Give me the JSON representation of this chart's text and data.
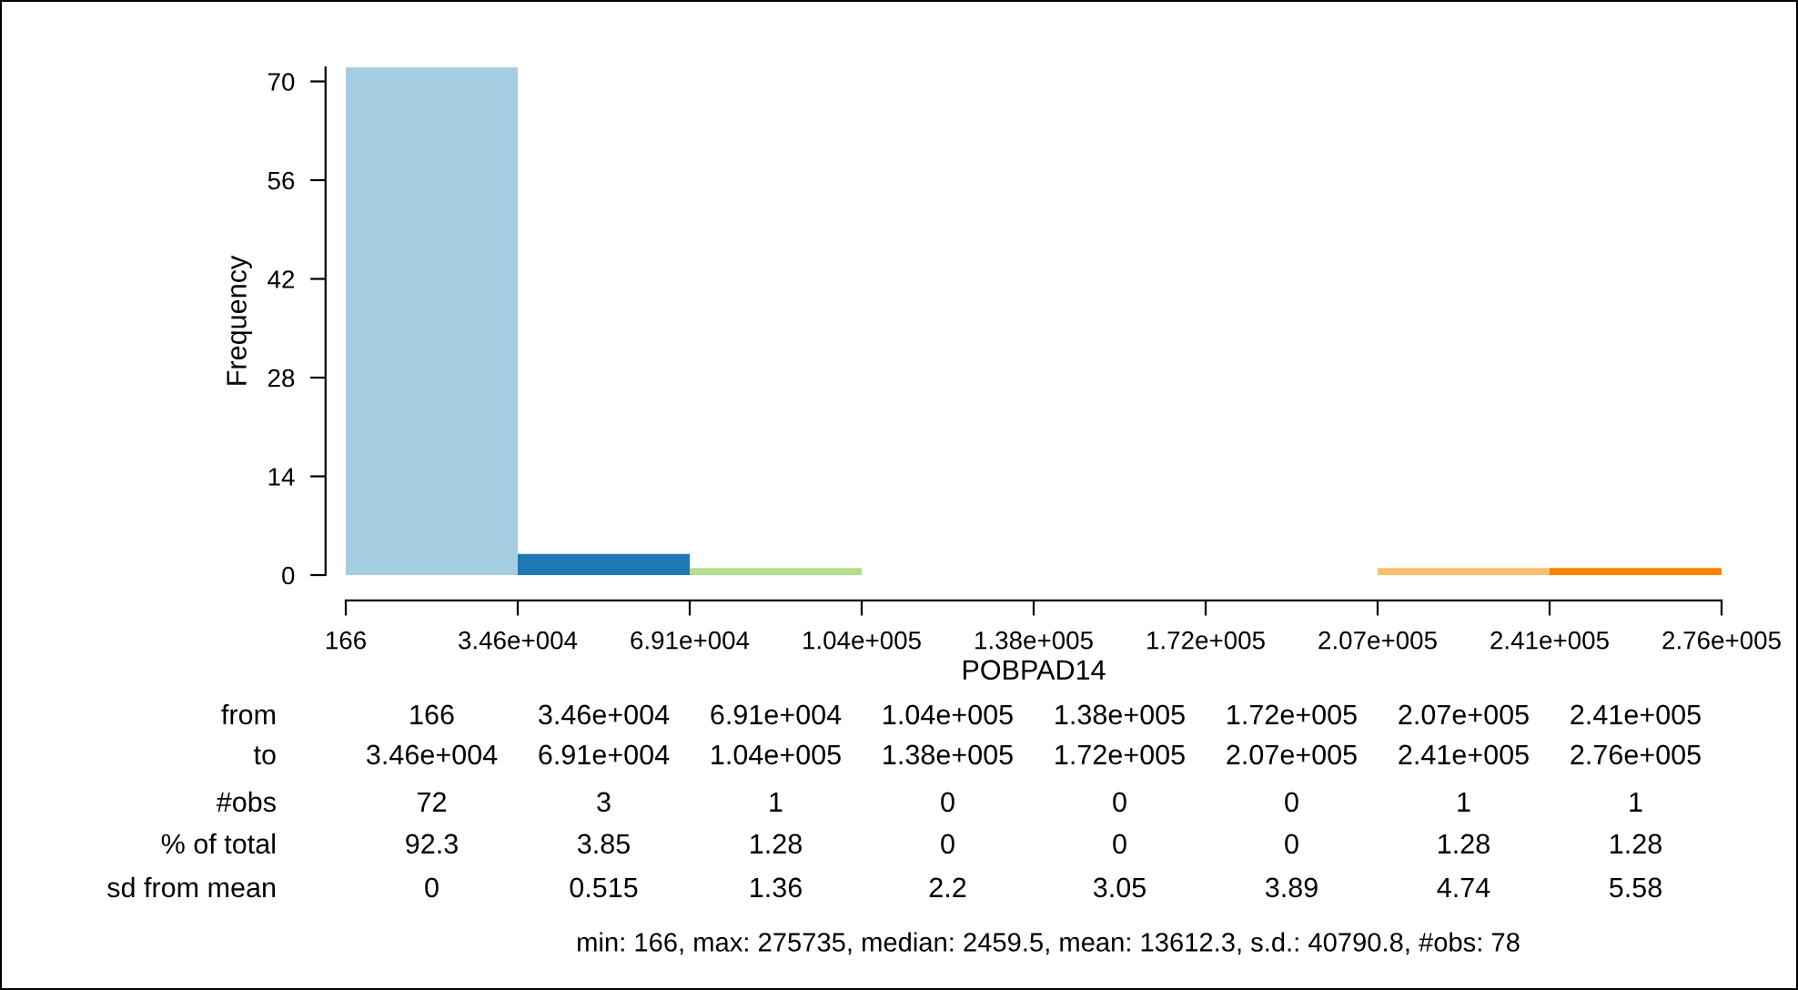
{
  "chart_data": {
    "type": "histogram",
    "xlabel": "POBPAD14",
    "ylabel": "Frequency",
    "bins": [
      166,
      34612.125,
      69058.25,
      103504.375,
      137950.5,
      172396.625,
      206842.75,
      241288.875,
      275735
    ],
    "values": [
      72,
      3,
      1,
      0,
      0,
      0,
      1,
      1
    ],
    "colors": [
      "#a6cee3",
      "#1f78b4",
      "#b2df8a",
      "#33a02c",
      "#fb9a99",
      "#e31a1c",
      "#fdbf6f",
      "#ff7f00"
    ],
    "xlim": [
      166,
      275735
    ],
    "xticks": [
      {
        "value": 166,
        "label": "166"
      },
      {
        "value": 34612.125,
        "label": "3.46e+004"
      },
      {
        "value": 69058.25,
        "label": "6.91e+004"
      },
      {
        "value": 103504.375,
        "label": "1.04e+005"
      },
      {
        "value": 137950.5,
        "label": "1.38e+005"
      },
      {
        "value": 172396.625,
        "label": "1.72e+005"
      },
      {
        "value": 206842.75,
        "label": "2.07e+005"
      },
      {
        "value": 241288.875,
        "label": "2.41e+005"
      },
      {
        "value": 275735,
        "label": "2.76e+005"
      }
    ],
    "ylim": [
      0,
      72
    ],
    "yticks": [
      0,
      14,
      28,
      42,
      56,
      70
    ],
    "grid": false,
    "legend": false,
    "annotations": [
      "from",
      "166",
      "3.46e+004",
      "6.91e+004",
      "1.04e+005",
      "1.38e+005",
      "1.72e+005",
      "2.07e+005",
      "2.41e+005",
      "to",
      "3.46e+004",
      "6.91e+004",
      "1.04e+005",
      "1.38e+005",
      "1.72e+005",
      "2.07e+005",
      "2.41e+005",
      "2.76e+005",
      "#obs",
      "72",
      "3",
      "1",
      "0",
      "0",
      "0",
      "1",
      "1",
      "% of total",
      "92.3",
      "3.85",
      "1.28",
      "0",
      "0",
      "0",
      "1.28",
      "1.28",
      "sd from mean",
      "0",
      "0.515",
      "1.36",
      "2.2",
      "3.05",
      "3.89",
      "4.74",
      "5.58",
      "min: 166, max: 275735, median: 2459.5, mean: 13612.3, s.d.: 40790.8, #obs: 78"
    ]
  }
}
